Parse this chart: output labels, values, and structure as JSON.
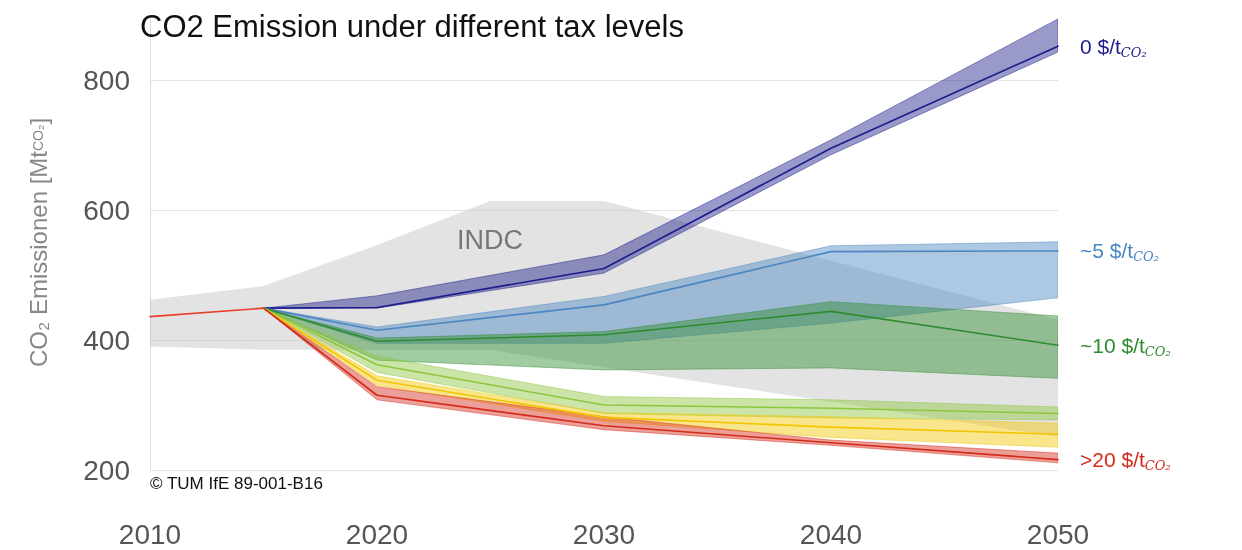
{
  "chart_data": {
    "type": "line",
    "title": "CO2 Emission under different tax levels",
    "ylabel": "CO₂ Emissionen [Mt$_{CO₂}$]",
    "xlim": [
      2010,
      2050
    ],
    "xticks": [
      2010,
      2020,
      2030,
      2040,
      2050
    ],
    "ylim": [
      200,
      900
    ],
    "yticks": [
      200,
      400,
      600,
      800
    ],
    "grid": "y",
    "legend": false,
    "marker": "none",
    "line_style": "solid",
    "annotations": [
      "INDC",
      "© TUM IfE 89-001-B16"
    ],
    "series": [
      {
        "type": "area",
        "color": "#c8c8c8",
        "x": [
          2010,
          2015,
          2020,
          2025,
          2030,
          2040,
          2050
        ],
        "values": [
          null,
          null,
          null,
          null,
          null,
          null,
          null
        ],
        "lower": [
          390,
          385,
          385,
          385,
          358,
          305,
          251
        ],
        "upper": [
          462,
          483,
          546,
          614,
          614,
          522,
          431
        ]
      },
      {
        "name": "0 $/t$_{CO₂}$",
        "color": "#1c1c8a",
        "x": [
          2015,
          2020,
          2030,
          2040,
          2050
        ],
        "values": [
          449,
          450,
          510,
          695,
          852
        ],
        "lower": [
          449,
          449,
          503,
          685,
          843
        ],
        "upper": [
          449,
          468,
          531,
          708,
          894
        ]
      },
      {
        "name": "~5 $/t$_{CO₂}$",
        "color": "#4a86c0",
        "x": [
          2015,
          2020,
          2030,
          2040,
          2050
        ],
        "values": [
          449,
          415,
          454,
          536,
          537
        ],
        "lower": [
          449,
          395,
          395,
          426,
          465
        ],
        "upper": [
          449,
          420,
          467,
          545,
          551
        ]
      },
      {
        "name": "~10 $/t$_{CO₂}$",
        "color": "#2e8b2e",
        "x": [
          2015,
          2020,
          2030,
          2040,
          2050
        ],
        "values": [
          449,
          398,
          408,
          444,
          392
        ],
        "lower": [
          449,
          369,
          354,
          357,
          341
        ],
        "upper": [
          449,
          403,
          413,
          459,
          437
        ]
      },
      {
        "color": "#8cc63f",
        "x": [
          2015,
          2020,
          2030,
          2040,
          2050
        ],
        "values": [
          449,
          362,
          300,
          295,
          287
        ],
        "lower": [
          449,
          350,
          287,
          280,
          277
        ],
        "upper": [
          449,
          375,
          313,
          308,
          297
        ]
      },
      {
        "color": "#f2c500",
        "x": [
          2015,
          2020,
          2030,
          2040,
          2050
        ],
        "values": [
          449,
          338,
          281,
          266,
          255
        ],
        "lower": [
          449,
          330,
          275,
          250,
          235
        ],
        "upper": [
          449,
          345,
          288,
          282,
          272
        ]
      },
      {
        "name": ">20 $/t$_{CO₂}$",
        "color": "#d42a1a",
        "x": [
          2015,
          2020,
          2030,
          2040,
          2050
        ],
        "values": [
          449,
          315,
          268,
          242,
          216
        ],
        "lower": [
          449,
          308,
          262,
          238,
          211
        ],
        "upper": [
          449,
          328,
          282,
          246,
          226
        ]
      },
      {
        "color": "#e8402a",
        "x": [
          2010,
          2015
        ],
        "values": [
          436,
          449
        ]
      }
    ]
  }
}
